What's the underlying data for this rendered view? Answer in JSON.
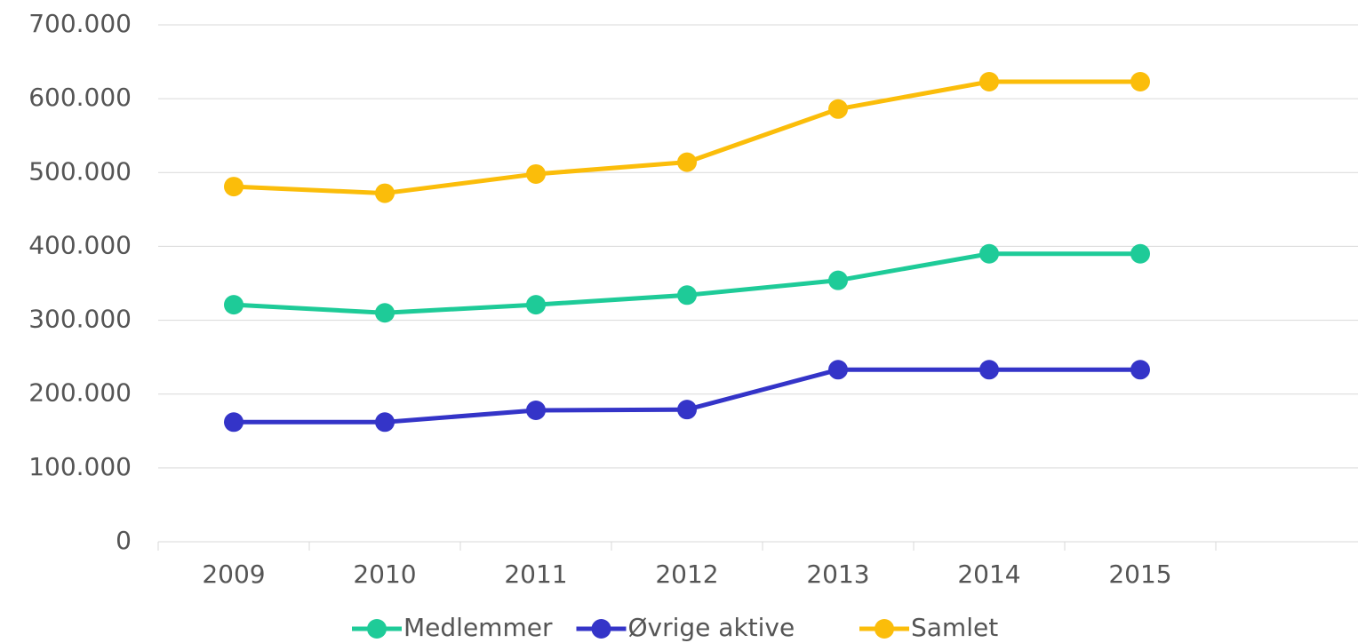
{
  "chart_data": {
    "type": "line",
    "categories": [
      "2009",
      "2010",
      "2011",
      "2012",
      "2013",
      "2014",
      "2015",
      null
    ],
    "series": [
      {
        "name": "Medlemmer",
        "color": "#1ecb98",
        "values": [
          321000,
          310000,
          321000,
          334000,
          354000,
          390000,
          390000,
          null
        ]
      },
      {
        "name": "Øvrige aktive",
        "color": "#3434c8",
        "values": [
          162000,
          162000,
          178000,
          179000,
          233000,
          233000,
          233000,
          null
        ]
      },
      {
        "name": "Samlet",
        "color": "#fbbd0a",
        "values": [
          481000,
          472000,
          498000,
          514000,
          586000,
          623000,
          623000,
          null
        ]
      }
    ],
    "ylim": [
      0,
      700000
    ],
    "yticks": [
      0,
      {
        "value": 100000,
        "label": "100.000"
      },
      {
        "value": 200000,
        "label": "200.000"
      },
      {
        "value": 300000,
        "label": "300.000"
      },
      {
        "value": 400000,
        "label": "400.000"
      },
      {
        "value": 500000,
        "label": "500.000"
      },
      {
        "value": 600000,
        "label": "600.000"
      },
      {
        "value": 700000,
        "label": "700.000"
      }
    ],
    "grid": true
  }
}
